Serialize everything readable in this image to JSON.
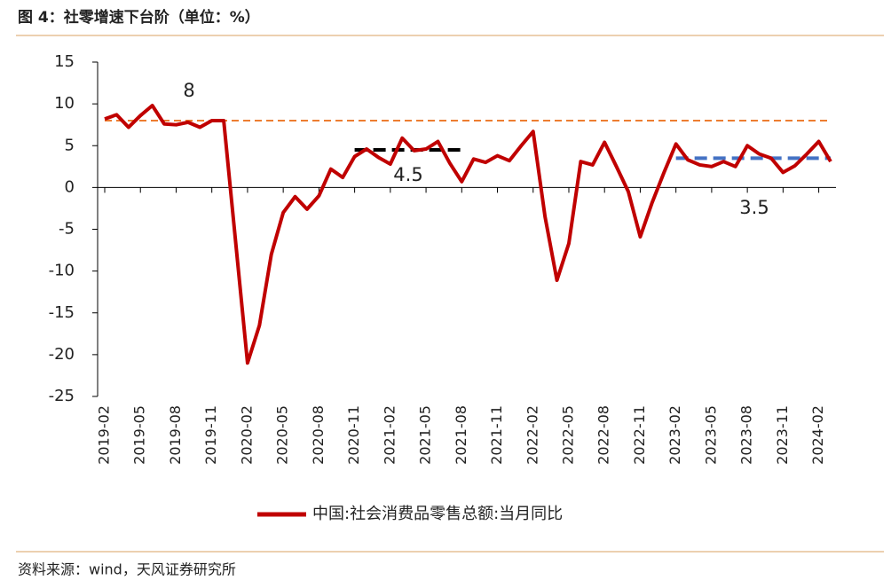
{
  "chart_data": {
    "type": "line",
    "title": "图 4：社零增速下台阶（单位：%）",
    "source": "资料来源：wind，天风证券研究所",
    "x": [
      "2019-02",
      "2019-03",
      "2019-04",
      "2019-05",
      "2019-06",
      "2019-07",
      "2019-08",
      "2019-09",
      "2019-10",
      "2019-11",
      "2019-12",
      "2020-02",
      "2020-03",
      "2020-04",
      "2020-05",
      "2020-06",
      "2020-07",
      "2020-08",
      "2020-09",
      "2020-10",
      "2020-11",
      "2020-12",
      "2021-01",
      "2021-02",
      "2021-03",
      "2021-04",
      "2021-05",
      "2021-06",
      "2021-07",
      "2021-08",
      "2021-09",
      "2021-10",
      "2021-11",
      "2021-12",
      "2022-01",
      "2022-02",
      "2022-03",
      "2022-04",
      "2022-05",
      "2022-06",
      "2022-07",
      "2022-08",
      "2022-09",
      "2022-10",
      "2022-11",
      "2022-12",
      "2023-01",
      "2023-02",
      "2023-03",
      "2023-04",
      "2023-05",
      "2023-06",
      "2023-07",
      "2023-08",
      "2023-09",
      "2023-10",
      "2023-11",
      "2023-12",
      "2024-01",
      "2024-02",
      "2024-03"
    ],
    "series": [
      {
        "name": "中国:社会消费品零售总额:当月同比",
        "color": "#c00000",
        "values": [
          8.2,
          8.7,
          7.2,
          8.6,
          9.8,
          7.6,
          7.5,
          7.8,
          7.2,
          8.0,
          8.0,
          -21,
          -16.5,
          -8,
          -3,
          -1.1,
          -2.6,
          -1,
          2.2,
          1.2,
          3.7,
          4.6,
          3.6,
          2.8,
          5.9,
          4.4,
          4.6,
          5.5,
          2.9,
          0.7,
          3.4,
          3.0,
          3.8,
          3.2,
          5.0,
          6.7,
          -3.5,
          -11.1,
          -6.7,
          3.1,
          2.7,
          5.4,
          2.5,
          -0.5,
          -5.9,
          -1.8,
          1.8,
          5.2,
          3.3,
          2.7,
          2.5,
          3.1,
          2.5,
          5.0,
          4.0,
          3.5,
          1.8,
          2.6,
          4.0,
          5.5,
          3.1
        ]
      }
    ],
    "reference_lines": [
      {
        "value": 8,
        "label": "8",
        "color": "#ed7d31",
        "from": "2019-02",
        "to": "2024-03"
      },
      {
        "value": 4.5,
        "label": "4.5",
        "color": "#000000",
        "from": "2020-11",
        "to": "2021-08"
      },
      {
        "value": 3.5,
        "label": "3.5",
        "color": "#4472c4",
        "from": "2023-02",
        "to": "2024-03"
      }
    ],
    "xticks": [
      "2019-02",
      "2019-05",
      "2019-08",
      "2019-11",
      "2020-02",
      "2020-05",
      "2020-08",
      "2020-11",
      "2021-02",
      "2021-05",
      "2021-08",
      "2021-11",
      "2022-02",
      "2022-05",
      "2022-08",
      "2022-11",
      "2023-02",
      "2023-05",
      "2023-08",
      "2023-11",
      "2024-02"
    ],
    "ylim": [
      -25,
      15
    ],
    "yticks": [
      15,
      10,
      5,
      0,
      -5,
      -10,
      -15,
      -20,
      -25
    ]
  }
}
